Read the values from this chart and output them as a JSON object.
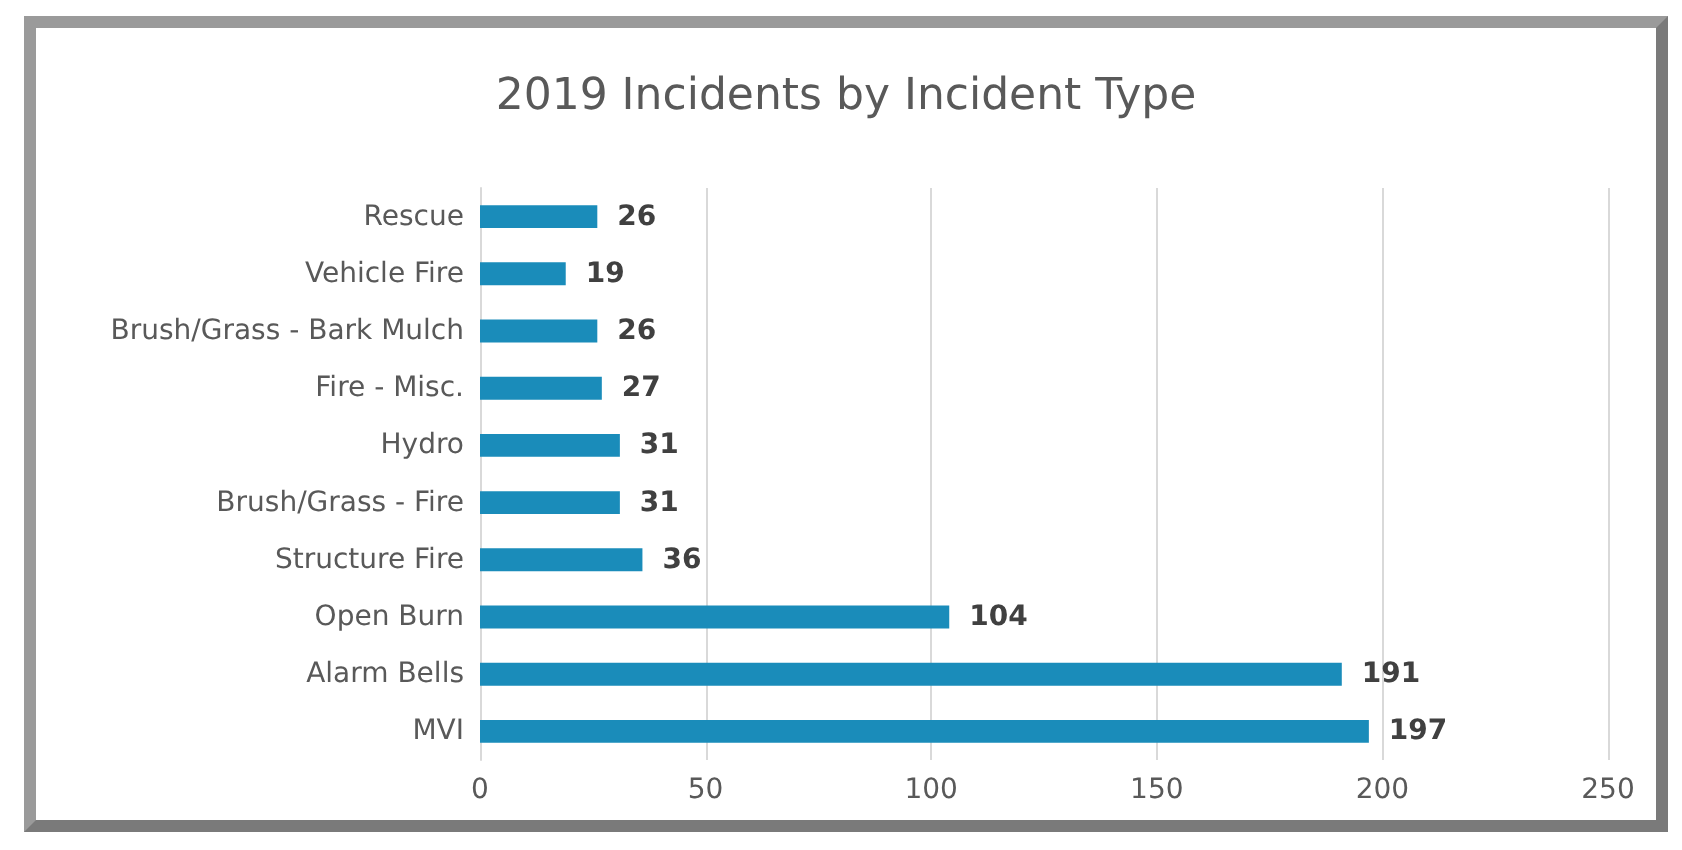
{
  "chart_data": {
    "type": "bar",
    "title": "2019 Incidents by Incident Type",
    "orientation": "horizontal",
    "categories": [
      "Rescue",
      "Vehicle Fire",
      "Brush/Grass - Bark Mulch",
      "Fire - Misc.",
      "Hydro",
      "Brush/Grass - Fire",
      "Structure Fire",
      "Open Burn",
      "Alarm Bells",
      "MVI"
    ],
    "values": [
      26,
      19,
      26,
      27,
      31,
      31,
      36,
      104,
      191,
      197
    ],
    "color": "#1a8cba",
    "xlim": [
      0,
      250
    ],
    "xticks": [
      0,
      50,
      100,
      150,
      200,
      250
    ],
    "grid": "x",
    "data_labels": true
  }
}
